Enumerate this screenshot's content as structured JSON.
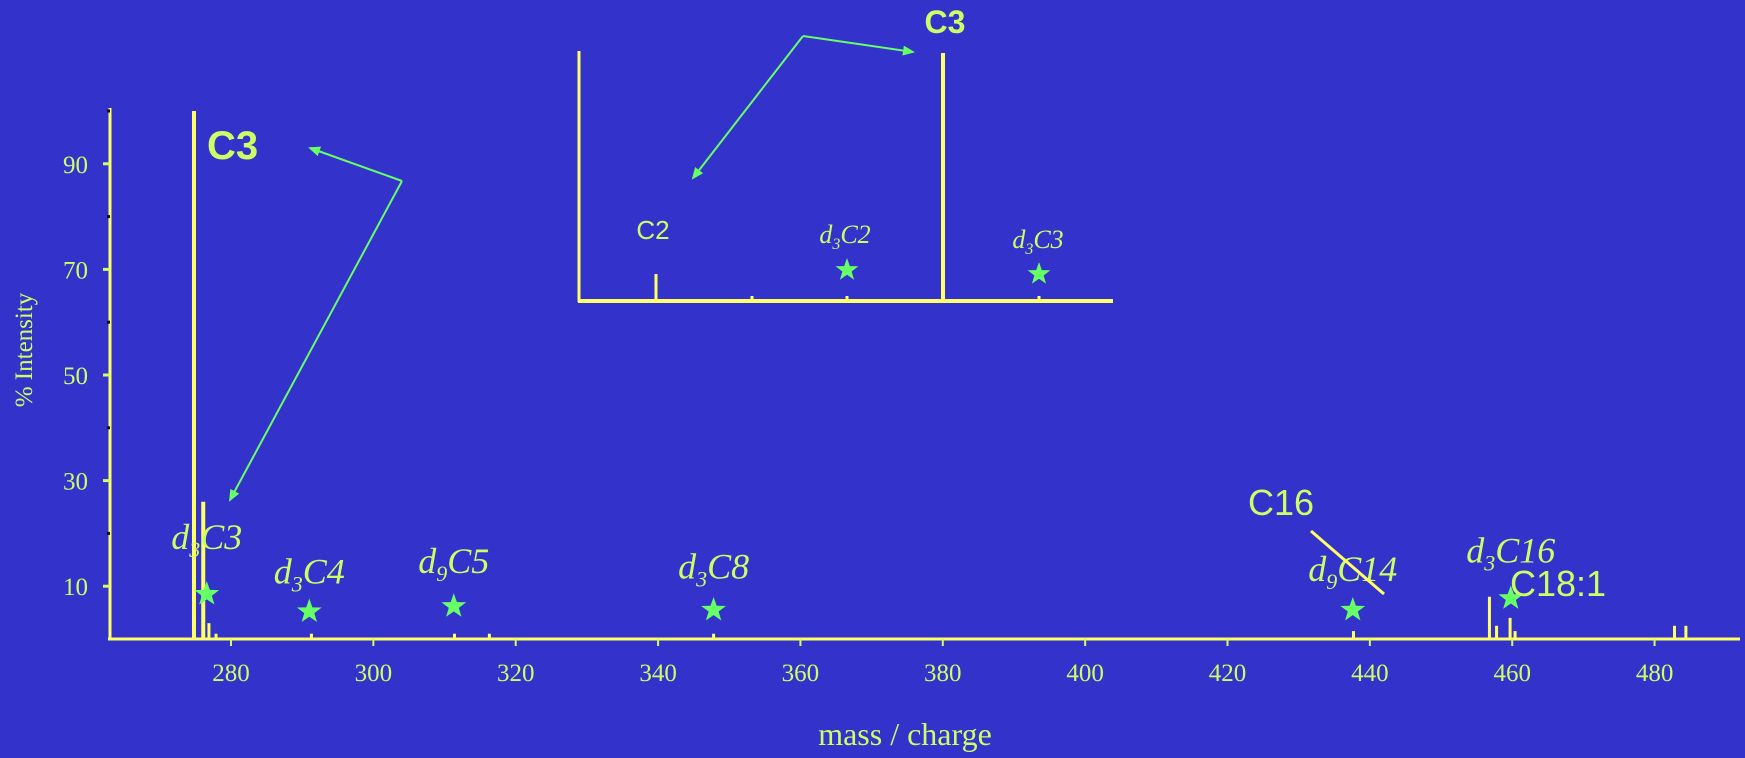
{
  "colors": {
    "background": "#3333cc",
    "axis": "#ffff66",
    "text": "#ccff66",
    "star": "#66ff66",
    "arrow": "#66ff66",
    "peak": "#ffff66"
  },
  "chart_data": {
    "type": "bar",
    "xlabel": "mass / charge",
    "ylabel": "% Intensity",
    "xlim": [
      263,
      492
    ],
    "ylim": [
      0,
      100
    ],
    "xticks": [
      280,
      300,
      320,
      340,
      360,
      380,
      400,
      420,
      440,
      460,
      480
    ],
    "yticks": [
      10,
      30,
      50,
      70,
      90
    ],
    "peaks": [
      {
        "x": 274.8,
        "y": 100
      },
      {
        "x": 276.1,
        "y": 26
      },
      {
        "x": 276.9,
        "y": 3
      },
      {
        "x": 277.9,
        "y": 1
      },
      {
        "x": 291.3,
        "y": 1
      },
      {
        "x": 311.4,
        "y": 1
      },
      {
        "x": 316.3,
        "y": 1
      },
      {
        "x": 347.8,
        "y": 1
      },
      {
        "x": 437.7,
        "y": 1.5
      },
      {
        "x": 456.8,
        "y": 8
      },
      {
        "x": 457.8,
        "y": 2.5
      },
      {
        "x": 459.7,
        "y": 4
      },
      {
        "x": 460.4,
        "y": 1.5
      },
      {
        "x": 482.8,
        "y": 2.5
      },
      {
        "x": 484.4,
        "y": 2.5
      }
    ],
    "annotations": [
      {
        "id": "d3c3",
        "sub": "3",
        "name": "C3",
        "x": 276.6,
        "y": 17,
        "star_y": 8.5
      },
      {
        "id": "d3c4",
        "sub": "3",
        "name": "C4",
        "x": 291.0,
        "y": 10.5,
        "star_y": 5.2
      },
      {
        "id": "d9c5",
        "sub": "9",
        "name": "C5",
        "x": 311.3,
        "y": 12.5,
        "star_y": 6.2
      },
      {
        "id": "d3c8",
        "sub": "3",
        "name": "C8",
        "x": 347.8,
        "y": 11.5,
        "star_y": 5.5
      },
      {
        "id": "d9c14",
        "sub": "9",
        "name": "C14",
        "x": 437.6,
        "y": 11,
        "star_y": 5.5
      },
      {
        "id": "d3c16",
        "sub": "3",
        "name": "C16",
        "x": 459.8,
        "y": 14.5,
        "star_y": 7.7
      }
    ],
    "plain_labels": {
      "c3_main": "C3",
      "c16": "C16",
      "c18_1": "C18:1"
    },
    "inset": {
      "title": "C3",
      "c2_label": "C2",
      "d3c2": {
        "sub": "3",
        "name": "C2"
      },
      "d3c3": {
        "sub": "3",
        "name": "C3"
      }
    }
  }
}
